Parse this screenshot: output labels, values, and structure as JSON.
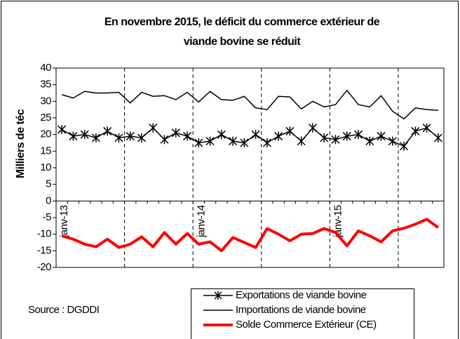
{
  "chart_data": {
    "type": "line",
    "title": "En novembre 2015, le déficit du commerce extérieur de viande bovine se réduit",
    "y_label": "Milliers de téc",
    "source": "Source : DGDDI",
    "categories": [
      "janv-13",
      null,
      null,
      null,
      null,
      null,
      null,
      null,
      null,
      null,
      null,
      null,
      "janv-14",
      null,
      null,
      null,
      null,
      null,
      null,
      null,
      null,
      null,
      null,
      null,
      "janv-15",
      null,
      null,
      null,
      null,
      null,
      null,
      null,
      null,
      null
    ],
    "series": [
      {
        "name": "Exportations de viande bovine",
        "color": "#000000",
        "marker": "asterisk",
        "values": [
          21.5,
          19.5,
          20,
          19,
          21,
          19,
          19.5,
          19,
          22,
          18.5,
          20.5,
          19.5,
          17.5,
          18,
          20,
          18,
          17.5,
          20,
          17.5,
          19.5,
          21,
          18,
          22,
          19,
          18.5,
          19.5,
          20,
          18,
          19.5,
          18,
          16.5,
          21,
          22,
          19
        ]
      },
      {
        "name": "Importations de viande bovine",
        "color": "#000000",
        "values": [
          32,
          31,
          33,
          32.5,
          32.5,
          32.7,
          29.5,
          32.7,
          31.5,
          31.7,
          30.5,
          32.7,
          29.8,
          33,
          30.5,
          30.3,
          31.5,
          28,
          27.5,
          31.5,
          31.3,
          27.7,
          30,
          28.3,
          29,
          33.3,
          29,
          28.3,
          31.7,
          27,
          24.7,
          28,
          27.5,
          27.3
        ]
      },
      {
        "name": "Solde Commerce Extérieur (CE)",
        "color": "#ff0000",
        "values": [
          -10.5,
          -11.5,
          -13,
          -13.8,
          -11.5,
          -14,
          -13,
          -10.8,
          -13.8,
          -9.5,
          -13,
          -9.8,
          -13,
          -12.3,
          -15,
          -11,
          -12.5,
          -14,
          -8.3,
          -10,
          -12,
          -10,
          -9.8,
          -8.3,
          -9.5,
          -13.5,
          -9,
          -10.5,
          -12.3,
          -9,
          -8.2,
          -7,
          -5.5,
          -8
        ]
      }
    ],
    "ylim": [
      -20,
      40
    ],
    "yticks": [
      -20,
      -15,
      -10,
      -5,
      0,
      5,
      10,
      15,
      20,
      25,
      30,
      35,
      40
    ]
  }
}
